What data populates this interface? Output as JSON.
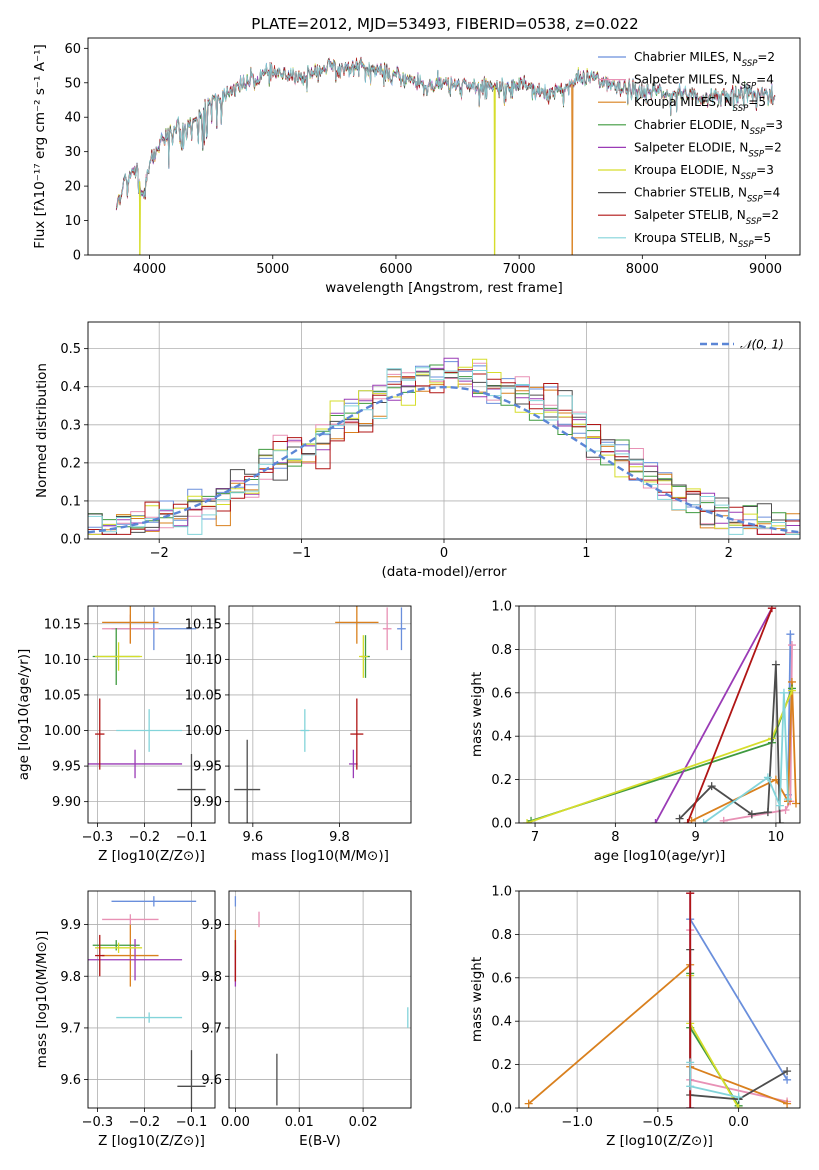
{
  "title": "PLATE=2012, MJD=53493, FIBERID=0538, z=0.022",
  "series_colors": [
    "#6a8fdc",
    "#e891b5",
    "#d9801e",
    "#3f9a3f",
    "#9a3bb6",
    "#d6dd2c",
    "#4d4d4d",
    "#b01515",
    "#83d4da"
  ],
  "chart_data": [
    {
      "type": "line",
      "id": "spectrum",
      "title": "PLATE=2012, MJD=53493, FIBERID=0538, z=0.022",
      "xlabel": "wavelength [Angstrom, rest frame]",
      "ylabel": "Flux [fλ10⁻¹⁷ erg cm⁻² s⁻¹ A⁻¹]",
      "xlim": [
        3500,
        9280
      ],
      "ylim": [
        0,
        63
      ],
      "xticks": [
        4000,
        5000,
        6000,
        7000,
        8000,
        9000
      ],
      "yticks": [
        0,
        10,
        20,
        30,
        40,
        50,
        60
      ],
      "legend_position": "top-right",
      "series": [
        {
          "name": "Chabrier MILES, N_SSP=2"
        },
        {
          "name": "Salpeter MILES, N_SSP=4"
        },
        {
          "name": "Kroupa MILES, N_SSP=5"
        },
        {
          "name": "Chabrier ELODIE, N_SSP=3"
        },
        {
          "name": "Salpeter ELODIE, N_SSP=2"
        },
        {
          "name": "Kroupa ELODIE, N_SSP=3"
        },
        {
          "name": "Chabrier STELIB, N_SSP=4"
        },
        {
          "name": "Salpeter STELIB, N_SSP=2"
        },
        {
          "name": "Kroupa STELIB, N_SSP=5"
        }
      ],
      "envelope": [
        [
          3730,
          14
        ],
        [
          3800,
          22
        ],
        [
          3900,
          25
        ],
        [
          3950,
          16
        ],
        [
          4000,
          27
        ],
        [
          4100,
          33
        ],
        [
          4200,
          37
        ],
        [
          4300,
          36
        ],
        [
          4400,
          40
        ],
        [
          4500,
          45
        ],
        [
          4600,
          46
        ],
        [
          4700,
          49
        ],
        [
          4800,
          50
        ],
        [
          4900,
          52
        ],
        [
          5000,
          53
        ],
        [
          5100,
          52
        ],
        [
          5200,
          51
        ],
        [
          5300,
          53
        ],
        [
          5400,
          54
        ],
        [
          5500,
          55
        ],
        [
          5600,
          54
        ],
        [
          5700,
          55
        ],
        [
          5800,
          54
        ],
        [
          5900,
          53
        ],
        [
          6000,
          52
        ],
        [
          6100,
          51
        ],
        [
          6200,
          50
        ],
        [
          6300,
          49
        ],
        [
          6400,
          50
        ],
        [
          6500,
          49
        ],
        [
          6600,
          49
        ],
        [
          6700,
          49
        ],
        [
          6800,
          49
        ],
        [
          6900,
          48
        ],
        [
          7000,
          50
        ],
        [
          7100,
          49
        ],
        [
          7200,
          47
        ],
        [
          7300,
          48
        ],
        [
          7400,
          49
        ],
        [
          7500,
          51
        ],
        [
          7600,
          52
        ],
        [
          7700,
          50
        ],
        [
          7800,
          48
        ],
        [
          7900,
          48
        ],
        [
          8000,
          47
        ],
        [
          8100,
          48
        ],
        [
          8200,
          46
        ],
        [
          8300,
          47
        ],
        [
          8400,
          47
        ],
        [
          8500,
          45
        ],
        [
          8600,
          47
        ],
        [
          8700,
          46
        ],
        [
          8800,
          47
        ],
        [
          8900,
          47
        ],
        [
          9000,
          47
        ],
        [
          9080,
          46
        ]
      ],
      "dropouts": [
        {
          "wavelength": 3920,
          "series": "Kroupa ELODIE, N_SSP=3"
        },
        {
          "wavelength": 6800,
          "series": "Kroupa ELODIE, N_SSP=3"
        },
        {
          "wavelength": 7430,
          "series": "Kroupa MILES, N_SSP=5"
        }
      ]
    },
    {
      "type": "step-histogram",
      "id": "residuals",
      "xlabel": "(data-model)/error",
      "ylabel": "Normed distribution",
      "xlim": [
        -2.5,
        2.5
      ],
      "ylim": [
        0,
        0.57
      ],
      "xticks": [
        -2,
        -1,
        0,
        1,
        2
      ],
      "yticks": [
        0.0,
        0.1,
        0.2,
        0.3,
        0.4,
        0.5
      ],
      "grid": true,
      "bin_width": 0.1,
      "legend": "𝒩(0, 1)",
      "legend_position": "top-right",
      "reference_curve": "normal, mean 0, sigma 1"
    },
    {
      "type": "scatter",
      "id": "age-vs-z",
      "xlabel": "Z [log10(Z/Z⊙)]",
      "ylabel": "age [log10(age/yr)]",
      "xlim": [
        -0.32,
        -0.05
      ],
      "ylim": [
        9.87,
        10.175
      ],
      "xticks": [
        -0.3,
        -0.2,
        -0.1
      ],
      "yticks": [
        9.9,
        9.95,
        10.0,
        10.05,
        10.1,
        10.15
      ],
      "grid": true,
      "points": [
        {
          "series": 0,
          "x": -0.18,
          "y": 10.143,
          "xerr": 0.09,
          "yerr": 0.03
        },
        {
          "series": 1,
          "x": -0.23,
          "y": 10.143,
          "xerr": 0.06,
          "yerr": 0.02
        },
        {
          "series": 2,
          "x": -0.23,
          "y": 10.152,
          "xerr": 0.06,
          "yerr": 0.03
        },
        {
          "series": 3,
          "x": -0.26,
          "y": 10.104,
          "xerr": 0.05,
          "yerr": 0.04
        },
        {
          "series": 4,
          "x": -0.22,
          "y": 9.953,
          "xerr": 0.1,
          "yerr": 0.02
        },
        {
          "series": 5,
          "x": -0.255,
          "y": 10.104,
          "xerr": 0.05,
          "yerr": 0.02
        },
        {
          "series": 6,
          "x": -0.1,
          "y": 9.917,
          "xerr": 0.03,
          "yerr": 0.05
        },
        {
          "series": 7,
          "x": -0.295,
          "y": 9.995,
          "xerr": 0.01,
          "yerr": 0.05
        },
        {
          "series": 8,
          "x": -0.19,
          "y": 10.0,
          "xerr": 0.07,
          "yerr": 0.03
        }
      ]
    },
    {
      "type": "scatter",
      "id": "age-vs-mass",
      "xlabel": "mass [log10(M/M⊙)]",
      "ylabel": "",
      "xlim": [
        9.545,
        9.965
      ],
      "ylim": [
        9.87,
        10.175
      ],
      "xticks": [
        9.6,
        9.8
      ],
      "yticks": [
        9.9,
        9.95,
        10.0,
        10.05,
        10.1,
        10.15
      ],
      "grid": true,
      "points": [
        {
          "series": 0,
          "x": 9.943,
          "y": 10.143,
          "xerr": 0.01,
          "yerr": 0.03
        },
        {
          "series": 1,
          "x": 9.91,
          "y": 10.143,
          "xerr": 0.01,
          "yerr": 0.03
        },
        {
          "series": 2,
          "x": 9.84,
          "y": 10.152,
          "xerr": 0.05,
          "yerr": 0.03
        },
        {
          "series": 3,
          "x": 9.86,
          "y": 10.104,
          "xerr": 0.01,
          "yerr": 0.03
        },
        {
          "series": 4,
          "x": 9.832,
          "y": 9.953,
          "xerr": 0.01,
          "yerr": 0.02
        },
        {
          "series": 5,
          "x": 9.855,
          "y": 10.104,
          "xerr": 0.01,
          "yerr": 0.03
        },
        {
          "series": 6,
          "x": 9.587,
          "y": 9.917,
          "xerr": 0.03,
          "yerr": 0.07
        },
        {
          "series": 7,
          "x": 9.84,
          "y": 9.995,
          "xerr": 0.015,
          "yerr": 0.05
        },
        {
          "series": 8,
          "x": 9.72,
          "y": 10.0,
          "xerr": 0.01,
          "yerr": 0.03
        }
      ]
    },
    {
      "type": "line",
      "id": "mass-weight-vs-age",
      "xlabel": "age  [log10(age/yr)]",
      "ylabel": "mass weight",
      "xlim": [
        6.8,
        10.3
      ],
      "ylim": [
        0,
        1.0
      ],
      "xticks": [
        7,
        8,
        9,
        10
      ],
      "yticks": [
        0.0,
        0.2,
        0.4,
        0.6,
        0.8,
        1.0
      ],
      "grid": true,
      "series": [
        {
          "series": 0,
          "x": [
            10.15,
            10.18
          ],
          "y": [
            0.13,
            0.87
          ]
        },
        {
          "series": 1,
          "x": [
            9.35,
            10.12,
            10.18,
            10.2
          ],
          "y": [
            0.01,
            0.06,
            0.1,
            0.82
          ]
        },
        {
          "series": 2,
          "x": [
            8.95,
            10.0,
            10.15,
            10.2,
            10.25
          ],
          "y": [
            0.01,
            0.2,
            0.1,
            0.65,
            0.09
          ]
        },
        {
          "series": 3,
          "x": [
            6.95,
            9.95,
            10.2
          ],
          "y": [
            0.01,
            0.37,
            0.62
          ]
        },
        {
          "series": 4,
          "x": [
            8.5,
            9.95
          ],
          "y": [
            0.0,
            0.99
          ]
        },
        {
          "series": 5,
          "x": [
            6.9,
            9.95,
            10.2
          ],
          "y": [
            0.0,
            0.39,
            0.61
          ]
        },
        {
          "series": 6,
          "x": [
            8.8,
            9.2,
            9.7,
            9.9,
            10.0,
            10.05
          ],
          "y": [
            0.02,
            0.17,
            0.04,
            0.05,
            0.73,
            0.0
          ]
        },
        {
          "series": 7,
          "x": [
            8.9,
            9.95
          ],
          "y": [
            0.0,
            0.99
          ]
        },
        {
          "series": 8,
          "x": [
            9.1,
            9.9,
            10.05,
            10.1,
            10.15
          ],
          "y": [
            0.0,
            0.21,
            0.08,
            0.6,
            0.11
          ]
        }
      ]
    },
    {
      "type": "scatter",
      "id": "mass-vs-z",
      "xlabel": "Z [log10(Z/Z⊙)]",
      "ylabel": "mass [log10(M/M⊙)]",
      "xlim": [
        -0.32,
        -0.05
      ],
      "ylim": [
        9.545,
        9.965
      ],
      "xticks": [
        -0.3,
        -0.2,
        -0.1
      ],
      "yticks": [
        9.6,
        9.7,
        9.8,
        9.9
      ],
      "grid": true,
      "points": [
        {
          "series": 0,
          "x": -0.18,
          "y": 9.945,
          "xerr": 0.09,
          "yerr": 0.01
        },
        {
          "series": 1,
          "x": -0.23,
          "y": 9.91,
          "xerr": 0.06,
          "yerr": 0.01
        },
        {
          "series": 2,
          "x": -0.23,
          "y": 9.84,
          "xerr": 0.06,
          "yerr": 0.06
        },
        {
          "series": 3,
          "x": -0.26,
          "y": 9.86,
          "xerr": 0.05,
          "yerr": 0.01
        },
        {
          "series": 4,
          "x": -0.22,
          "y": 9.832,
          "xerr": 0.1,
          "yerr": 0.04
        },
        {
          "series": 5,
          "x": -0.255,
          "y": 9.855,
          "xerr": 0.05,
          "yerr": 0.01
        },
        {
          "series": 6,
          "x": -0.1,
          "y": 9.587,
          "xerr": 0.03,
          "yerr": 0.07
        },
        {
          "series": 7,
          "x": -0.295,
          "y": 9.84,
          "xerr": 0.01,
          "yerr": 0.04
        },
        {
          "series": 8,
          "x": -0.19,
          "y": 9.72,
          "xerr": 0.07,
          "yerr": 0.01
        }
      ]
    },
    {
      "type": "scatter",
      "id": "mass-vs-ebv",
      "xlabel": "E(B-V)",
      "ylabel": "",
      "xlim": [
        -0.001,
        0.0275
      ],
      "ylim": [
        9.545,
        9.965
      ],
      "xticks": [
        0.0,
        0.01,
        0.02
      ],
      "yticks": [
        9.6,
        9.7,
        9.8,
        9.9
      ],
      "grid": true,
      "points": [
        {
          "series": 0,
          "x": 0.0,
          "y": 9.945,
          "xerr": 0,
          "yerr": 0.01
        },
        {
          "series": 1,
          "x": 0.0037,
          "y": 9.91,
          "xerr": 0,
          "yerr": 0.015
        },
        {
          "series": 2,
          "x": 0.0,
          "y": 9.84,
          "xerr": 0,
          "yerr": 0.05
        },
        {
          "series": 3,
          "x": 0.0,
          "y": 9.86,
          "xerr": 0,
          "yerr": 0.01
        },
        {
          "series": 4,
          "x": 0.0,
          "y": 9.82,
          "xerr": 0,
          "yerr": 0.04
        },
        {
          "series": 5,
          "x": 0.0,
          "y": 9.855,
          "xerr": 0,
          "yerr": 0.01
        },
        {
          "series": 6,
          "x": 0.0065,
          "y": 9.6,
          "xerr": 0,
          "yerr": 0.05
        },
        {
          "series": 7,
          "x": 0.0,
          "y": 9.83,
          "xerr": 0,
          "yerr": 0.04
        },
        {
          "series": 8,
          "x": 0.027,
          "y": 9.72,
          "xerr": 0,
          "yerr": 0.02
        }
      ]
    },
    {
      "type": "line",
      "id": "mass-weight-vs-z",
      "xlabel": "Z [log10(Z/Z⊙)]",
      "ylabel": "mass weight",
      "xlim": [
        -1.36,
        0.38
      ],
      "ylim": [
        0,
        1.0
      ],
      "xticks": [
        -1.0,
        -0.5,
        0.0
      ],
      "yticks": [
        0.0,
        0.2,
        0.4,
        0.6,
        0.8,
        1.0
      ],
      "grid": true,
      "series": [
        {
          "series": 0,
          "x": [
            -0.3,
            0.3
          ],
          "y": [
            0.87,
            0.13
          ]
        },
        {
          "series": 1,
          "x": [
            -0.3,
            -0.3,
            0.3
          ],
          "y": [
            0.82,
            0.13,
            0.03
          ]
        },
        {
          "series": 2,
          "x": [
            -1.3,
            -0.3,
            -0.3,
            0.3
          ],
          "y": [
            0.02,
            0.66,
            0.19,
            0.02
          ]
        },
        {
          "series": 3,
          "x": [
            -0.3,
            -0.3,
            0.0
          ],
          "y": [
            0.62,
            0.37,
            0.01
          ]
        },
        {
          "series": 4,
          "x": [
            -0.3,
            -0.3
          ],
          "y": [
            0.0,
            0.99
          ]
        },
        {
          "series": 5,
          "x": [
            -0.3,
            -0.3,
            0.0
          ],
          "y": [
            0.61,
            0.39,
            0.0
          ]
        },
        {
          "series": 6,
          "x": [
            -0.3,
            -0.3,
            0.0,
            0.3
          ],
          "y": [
            0.73,
            0.06,
            0.04,
            0.17
          ]
        },
        {
          "series": 7,
          "x": [
            -0.3,
            -0.3
          ],
          "y": [
            0.0,
            0.99
          ]
        },
        {
          "series": 8,
          "x": [
            -0.3,
            -0.3,
            0.0
          ],
          "y": [
            0.21,
            0.1,
            0.05
          ]
        }
      ]
    }
  ]
}
